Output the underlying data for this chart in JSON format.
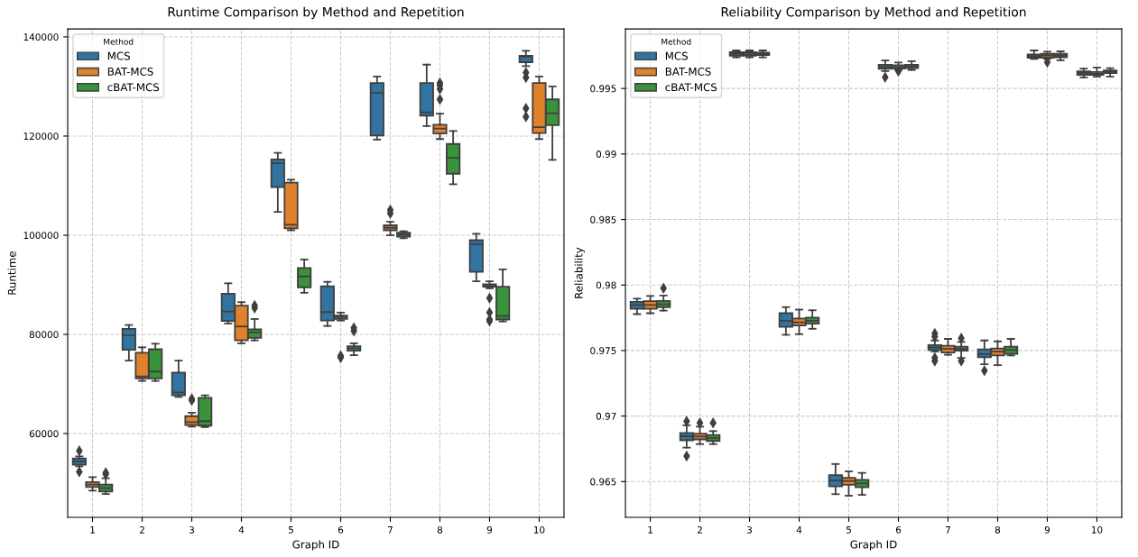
{
  "chart_data": [
    {
      "type": "box",
      "title": "Runtime Comparison by Method and Repetition",
      "xlabel": "Graph ID",
      "ylabel": "Runtime",
      "legend_title": "Method",
      "legend": "top left",
      "grid": true,
      "marker": "diamond",
      "categories": [
        "1",
        "2",
        "3",
        "4",
        "5",
        "6",
        "7",
        "8",
        "9",
        "10"
      ],
      "ylim": [
        43100,
        141600
      ],
      "yticks": [
        60000,
        80000,
        100000,
        120000,
        140000
      ],
      "series": [
        {
          "name": "MCS",
          "color": "#3274a1",
          "boxes": [
            {
              "low": 53400,
              "q1": 53700,
              "median": 54400,
              "q3": 55000,
              "high": 55400,
              "outliers": [
                56500,
                52300
              ]
            },
            {
              "low": 74700,
              "q1": 76900,
              "median": 79800,
              "q3": 81100,
              "high": 81900
            },
            {
              "low": 67400,
              "q1": 67700,
              "median": 68300,
              "q3": 72300,
              "high": 74700
            },
            {
              "low": 82200,
              "q1": 82700,
              "median": 84600,
              "q3": 88200,
              "high": 90300
            },
            {
              "low": 104700,
              "q1": 109700,
              "median": 114500,
              "q3": 115300,
              "high": 116600
            },
            {
              "low": 81700,
              "q1": 82800,
              "median": 84500,
              "q3": 89700,
              "high": 90600
            },
            {
              "low": 119300,
              "q1": 120100,
              "median": 128700,
              "q3": 130700,
              "high": 132000
            },
            {
              "low": 122000,
              "q1": 124100,
              "median": 124800,
              "q3": 130700,
              "high": 134400
            },
            {
              "low": 90700,
              "q1": 92600,
              "median": 98200,
              "q3": 99000,
              "high": 100300
            },
            {
              "low": 134100,
              "q1": 134900,
              "median": 136000,
              "q3": 136200,
              "high": 137200,
              "outliers": [
                132800,
                131800,
                125600,
                123900
              ]
            }
          ]
        },
        {
          "name": "BAT-MCS",
          "color": "#e1812c",
          "boxes": [
            {
              "low": 48500,
              "q1": 49200,
              "median": 49700,
              "q3": 50200,
              "high": 51200
            },
            {
              "low": 70600,
              "q1": 71100,
              "median": 71500,
              "q3": 76300,
              "high": 77400
            },
            {
              "low": 61400,
              "q1": 61700,
              "median": 62300,
              "q3": 63500,
              "high": 64200,
              "outliers": [
                67000,
                66700
              ]
            },
            {
              "low": 78200,
              "q1": 78800,
              "median": 81600,
              "q3": 85800,
              "high": 86500
            },
            {
              "low": 101000,
              "q1": 101400,
              "median": 102100,
              "q3": 110600,
              "high": 111200
            },
            {
              "low": 82800,
              "q1": 83100,
              "median": 83500,
              "q3": 83800,
              "high": 84400,
              "outliers": [
                75700,
                75300
              ]
            },
            {
              "low": 100000,
              "q1": 101000,
              "median": 101500,
              "q3": 102000,
              "high": 102700,
              "outliers": [
                105100,
                104400
              ]
            },
            {
              "low": 119400,
              "q1": 120500,
              "median": 121500,
              "q3": 122300,
              "high": 124500,
              "outliers": [
                130700,
                130200,
                129500,
                127400
              ]
            },
            {
              "low": 89300,
              "q1": 89600,
              "median": 89800,
              "q3": 90100,
              "high": 90700,
              "outliers": [
                87300,
                84400,
                83000,
                82700
              ]
            },
            {
              "low": 119400,
              "q1": 120600,
              "median": 121800,
              "q3": 130700,
              "high": 132000
            }
          ]
        },
        {
          "name": "cBAT-MCS",
          "color": "#3a923a",
          "boxes": [
            {
              "low": 47800,
              "q1": 48300,
              "median": 49000,
              "q3": 49700,
              "high": 51000,
              "outliers": [
                51800,
                52100
              ]
            },
            {
              "low": 70600,
              "q1": 71100,
              "median": 72500,
              "q3": 77000,
              "high": 78100
            },
            {
              "low": 61300,
              "q1": 61600,
              "median": 62500,
              "q3": 67200,
              "high": 67700
            },
            {
              "low": 78800,
              "q1": 79300,
              "median": 80400,
              "q3": 81000,
              "high": 83100,
              "outliers": [
                85800,
                85300
              ]
            },
            {
              "low": 88400,
              "q1": 89500,
              "median": 91700,
              "q3": 93400,
              "high": 95100
            },
            {
              "low": 75800,
              "q1": 76700,
              "median": 77200,
              "q3": 77600,
              "high": 78200,
              "outliers": [
                81300,
                80700
              ]
            },
            {
              "low": 99400,
              "q1": 99700,
              "median": 100100,
              "q3": 100500,
              "high": 100800
            },
            {
              "low": 110300,
              "q1": 112400,
              "median": 115600,
              "q3": 118400,
              "high": 121000
            },
            {
              "low": 82600,
              "q1": 83000,
              "median": 83700,
              "q3": 89600,
              "high": 93100
            },
            {
              "low": 115200,
              "q1": 122200,
              "median": 124600,
              "q3": 127400,
              "high": 130000
            }
          ]
        }
      ]
    },
    {
      "type": "box",
      "title": "Reliability Comparison by Method and Repetition",
      "xlabel": "Graph ID",
      "ylabel": "Reliability",
      "legend_title": "Method",
      "legend": "top left",
      "grid": true,
      "marker": "diamond",
      "categories": [
        "1",
        "2",
        "3",
        "4",
        "5",
        "6",
        "7",
        "8",
        "9",
        "10"
      ],
      "ylim": [
        0.96227,
        0.99954
      ],
      "yticks": [
        0.965,
        0.97,
        0.975,
        0.98,
        0.985,
        0.99,
        0.995
      ],
      "series": [
        {
          "name": "MCS",
          "color": "#3274a1",
          "boxes": [
            {
              "low": 0.97778,
              "q1": 0.97819,
              "median": 0.97848,
              "q3": 0.97872,
              "high": 0.97896
            },
            {
              "low": 0.96759,
              "q1": 0.96815,
              "median": 0.96846,
              "q3": 0.96871,
              "high": 0.96929,
              "outliers": [
                0.9696,
                0.96694
              ]
            },
            {
              "low": 0.99738,
              "q1": 0.99749,
              "median": 0.99764,
              "q3": 0.99776,
              "high": 0.9979
            },
            {
              "low": 0.9762,
              "q1": 0.97681,
              "median": 0.97727,
              "q3": 0.97785,
              "high": 0.97831
            },
            {
              "low": 0.96404,
              "q1": 0.96464,
              "median": 0.96508,
              "q3": 0.96549,
              "high": 0.96634
            },
            {
              "low": 0.99633,
              "q1": 0.9965,
              "median": 0.99664,
              "q3": 0.99681,
              "high": 0.99713,
              "outliers": [
                0.99585
              ]
            },
            {
              "low": 0.97492,
              "q1": 0.97504,
              "median": 0.97524,
              "q3": 0.97541,
              "high": 0.97577,
              "outliers": [
                0.9763,
                0.97606,
                0.97444,
                0.9742
              ]
            },
            {
              "low": 0.97395,
              "q1": 0.97449,
              "median": 0.97473,
              "q3": 0.97509,
              "high": 0.97577,
              "outliers": [
                0.97347
              ]
            },
            {
              "low": 0.99725,
              "q1": 0.99735,
              "median": 0.99747,
              "q3": 0.99759,
              "high": 0.9979
            },
            {
              "low": 0.99585,
              "q1": 0.99604,
              "median": 0.99619,
              "q3": 0.99631,
              "high": 0.99652
            }
          ]
        },
        {
          "name": "BAT-MCS",
          "color": "#e1812c",
          "boxes": [
            {
              "low": 0.97785,
              "q1": 0.97819,
              "median": 0.97848,
              "q3": 0.97877,
              "high": 0.97916
            },
            {
              "low": 0.96786,
              "q1": 0.96822,
              "median": 0.96844,
              "q3": 0.96866,
              "high": 0.96919,
              "outliers": [
                0.96948
              ]
            },
            {
              "low": 0.99738,
              "q1": 0.99749,
              "median": 0.99762,
              "q3": 0.99776,
              "high": 0.9979
            },
            {
              "low": 0.97625,
              "q1": 0.97691,
              "median": 0.97715,
              "q3": 0.97744,
              "high": 0.97812
            },
            {
              "low": 0.96392,
              "q1": 0.96476,
              "median": 0.96505,
              "q3": 0.96529,
              "high": 0.96578
            },
            {
              "low": 0.99642,
              "q1": 0.99652,
              "median": 0.99664,
              "q3": 0.99677,
              "high": 0.99698,
              "outliers": [
                0.99631
              ]
            },
            {
              "low": 0.97468,
              "q1": 0.97485,
              "median": 0.97512,
              "q3": 0.97536,
              "high": 0.97589
            },
            {
              "low": 0.97388,
              "q1": 0.97463,
              "median": 0.97492,
              "q3": 0.97516,
              "high": 0.9757
            },
            {
              "low": 0.99725,
              "q1": 0.99735,
              "median": 0.99752,
              "q3": 0.99764,
              "high": 0.9978,
              "outliers": [
                0.99701
              ]
            },
            {
              "low": 0.9959,
              "q1": 0.99604,
              "median": 0.99611,
              "q3": 0.99626,
              "high": 0.9966
            }
          ]
        },
        {
          "name": "cBAT-MCS",
          "color": "#3a923a",
          "boxes": [
            {
              "low": 0.97804,
              "q1": 0.97831,
              "median": 0.97853,
              "q3": 0.97879,
              "high": 0.9792,
              "outliers": [
                0.97976
              ]
            },
            {
              "low": 0.96786,
              "q1": 0.9681,
              "median": 0.96832,
              "q3": 0.96856,
              "high": 0.96885,
              "outliers": [
                0.96948
              ]
            },
            {
              "low": 0.99738,
              "q1": 0.99754,
              "median": 0.99764,
              "q3": 0.99773,
              "high": 0.9979
            },
            {
              "low": 0.97666,
              "q1": 0.97705,
              "median": 0.97727,
              "q3": 0.97751,
              "high": 0.97807
            },
            {
              "low": 0.96399,
              "q1": 0.96457,
              "median": 0.96486,
              "q3": 0.96513,
              "high": 0.96566
            },
            {
              "low": 0.99642,
              "q1": 0.99655,
              "median": 0.99669,
              "q3": 0.99681,
              "high": 0.99708
            },
            {
              "low": 0.97444,
              "q1": 0.97499,
              "median": 0.97512,
              "q3": 0.97529,
              "high": 0.97565,
              "outliers": [
                0.97594,
                0.9742
              ]
            },
            {
              "low": 0.97463,
              "q1": 0.97475,
              "median": 0.97504,
              "q3": 0.97529,
              "high": 0.97589
            },
            {
              "low": 0.99715,
              "q1": 0.99738,
              "median": 0.99749,
              "q3": 0.99764,
              "high": 0.99783
            },
            {
              "low": 0.9959,
              "q1": 0.99617,
              "median": 0.99629,
              "q3": 0.99638,
              "high": 0.99655
            }
          ]
        }
      ]
    }
  ]
}
